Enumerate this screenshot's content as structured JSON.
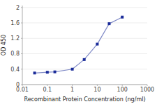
{
  "chart_data": {
    "type": "line",
    "x": [
      0.031,
      0.1,
      0.2,
      1.0,
      3.0,
      10.0,
      30.0,
      100.0
    ],
    "values": [
      0.3,
      0.32,
      0.33,
      0.4,
      0.65,
      1.05,
      1.58,
      1.75
    ],
    "color": "#1a2b99",
    "marker": "square",
    "xlabel": "Recombinant Protein Concentration (ng/ml)",
    "ylabel": "OD 450",
    "log": "x",
    "xlim": [
      0.01,
      1000
    ],
    "xticks": [
      0.01,
      0.1,
      1,
      10,
      100,
      1000
    ],
    "ylim": [
      0,
      2.05
    ],
    "yticks": [
      0,
      0.4,
      0.8,
      1.2,
      1.6,
      2
    ],
    "grid": true
  }
}
